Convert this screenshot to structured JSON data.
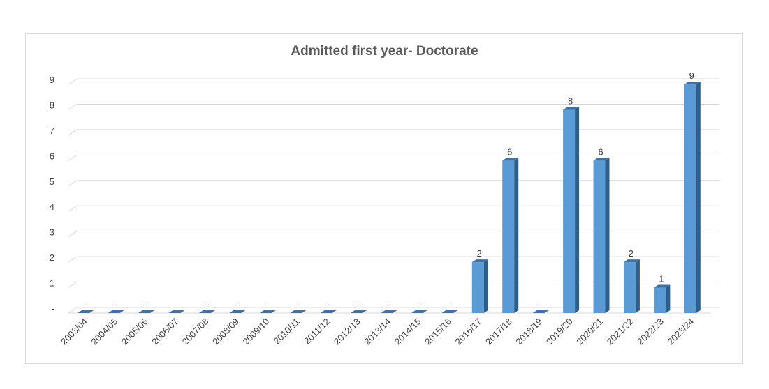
{
  "chart_data": {
    "type": "bar",
    "title": "Admitted first year- Doctorate",
    "xlabel": "",
    "ylabel": "",
    "categories": [
      "2003/04",
      "2004/05",
      "2005/06",
      "2006/07",
      "2007/08",
      "2008/09",
      "2009/10",
      "2010/11",
      "2011/12",
      "2012/13",
      "2013/14",
      "2014/15",
      "2015/16",
      "2016/17",
      "2017/18",
      "2018/19",
      "2019/20",
      "2020/21",
      "2021/22",
      "2022/23",
      "2023/24"
    ],
    "values": [
      0,
      0,
      0,
      0,
      0,
      0,
      0,
      0,
      0,
      0,
      0,
      0,
      0,
      2,
      6,
      0,
      8,
      6,
      2,
      1,
      9
    ],
    "data_labels": [
      "-",
      "-",
      "-",
      "-",
      "-",
      "-",
      "-",
      "-",
      "-",
      "-",
      "-",
      "-",
      "-",
      "2",
      "6",
      "-",
      "8",
      "6",
      "2",
      "1",
      "9"
    ],
    "y_ticks": [
      "-",
      "1",
      "2",
      "3",
      "4",
      "5",
      "6",
      "7",
      "8",
      "9"
    ],
    "ylim": [
      0,
      9
    ],
    "grid": true,
    "legend": "none",
    "style": "3d-column",
    "colors": {
      "bar_front": "#5b9bd5",
      "bar_side": "#2e5f8a",
      "bar_top": "#41719c",
      "grid": "#d9d9d9",
      "text": "#404040"
    }
  }
}
